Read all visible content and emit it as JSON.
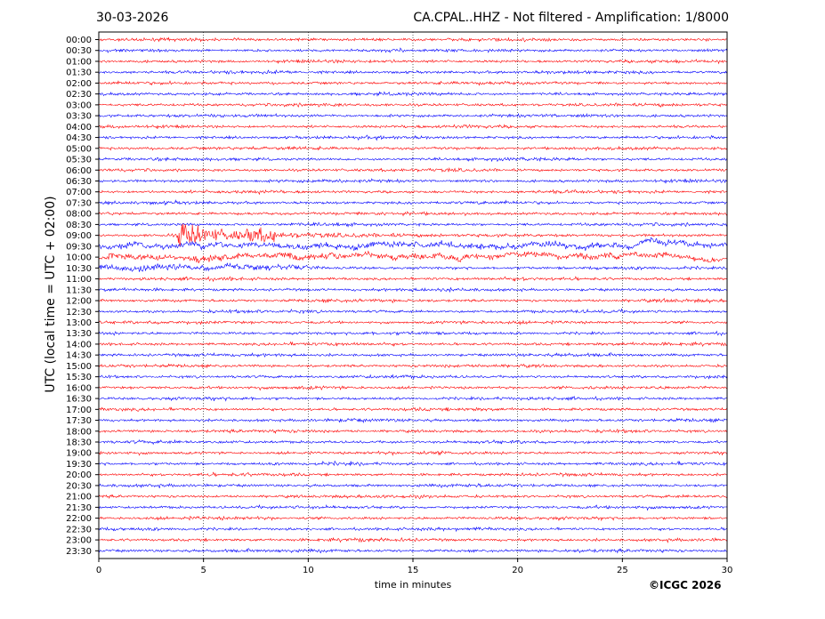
{
  "header": {
    "date": "30-03-2026",
    "title": "CA.CPAL..HHZ - Not filtered - Amplification: 1/8000"
  },
  "footer": {
    "copyright": "©ICGC 2026"
  },
  "chart_data": {
    "type": "line",
    "xlabel": "time in minutes",
    "ylabel": "UTC (local time = UTC + 02:00)",
    "xlim": [
      0,
      30
    ],
    "x_ticks": [
      "0",
      "5",
      "10",
      "15",
      "20",
      "25",
      "30"
    ],
    "row_labels": [
      "00:00",
      "00:30",
      "01:00",
      "01:30",
      "02:00",
      "02:30",
      "03:00",
      "03:30",
      "04:00",
      "04:30",
      "05:00",
      "05:30",
      "06:00",
      "06:30",
      "07:00",
      "07:30",
      "08:00",
      "08:30",
      "09:00",
      "09:30",
      "10:00",
      "10:30",
      "11:00",
      "11:30",
      "12:00",
      "12:30",
      "13:00",
      "13:30",
      "14:00",
      "14:30",
      "15:00",
      "15:30",
      "16:00",
      "16:30",
      "17:00",
      "17:30",
      "18:00",
      "18:30",
      "19:00",
      "19:30",
      "20:00",
      "20:30",
      "21:00",
      "21:30",
      "22:00",
      "22:30",
      "23:00",
      "23:30"
    ],
    "trace_colors": [
      "#ff0000",
      "#0000ff"
    ],
    "grid": "vertical dotted",
    "events": [
      {
        "row": "09:00",
        "onset_minute": 3.8,
        "peak_minute": 4.3,
        "coda_end_minute": 20
      },
      {
        "row": "09:30",
        "start_minute": 0,
        "end_minute": 30
      },
      {
        "row": "10:00",
        "start_minute": 0,
        "end_minute": 30
      },
      {
        "row": "10:30",
        "start_minute": 0,
        "end_minute": 10
      }
    ]
  }
}
